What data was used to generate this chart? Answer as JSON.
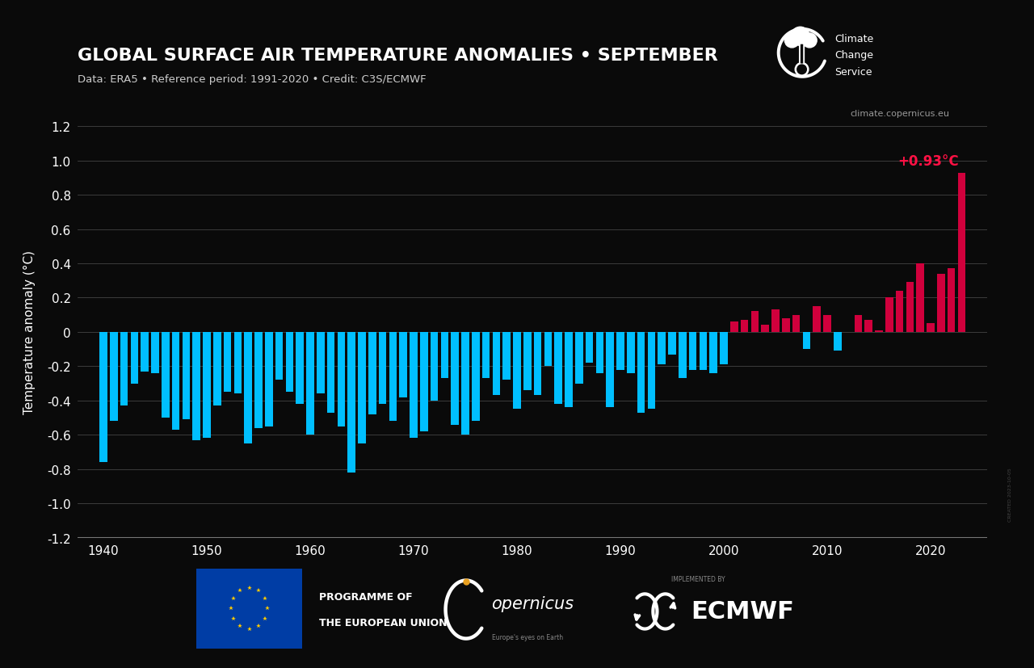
{
  "title": "GLOBAL SURFACE AIR TEMPERATURE ANOMALIES • SEPTEMBER",
  "subtitle": "Data: ERA5 • Reference period: 1991-2020 • Credit: C3S/ECMWF",
  "ylabel": "Temperature anomaly (°C)",
  "annotation": "+0.93°C",
  "watermark": "CREATED 2023-10-05",
  "bg_color": "#0a0a0a",
  "bar_color_negative": "#00BFFF",
  "bar_color_positive": "#D0003C",
  "grid_color": "#444444",
  "text_color": "#ffffff",
  "subtitle_color": "#cccccc",
  "annotation_color": "#FF1144",
  "website_color": "#999999",
  "ylim": [
    -1.2,
    1.2
  ],
  "yticks": [
    -1.2,
    -1.0,
    -0.8,
    -0.6,
    -0.4,
    -0.2,
    0.0,
    0.2,
    0.4,
    0.6,
    0.8,
    1.0,
    1.2
  ],
  "xticks": [
    1940,
    1950,
    1960,
    1970,
    1980,
    1990,
    2000,
    2010,
    2020
  ],
  "years": [
    1940,
    1941,
    1942,
    1943,
    1944,
    1945,
    1946,
    1947,
    1948,
    1949,
    1950,
    1951,
    1952,
    1953,
    1954,
    1955,
    1956,
    1957,
    1958,
    1959,
    1960,
    1961,
    1962,
    1963,
    1964,
    1965,
    1966,
    1967,
    1968,
    1969,
    1970,
    1971,
    1972,
    1973,
    1974,
    1975,
    1976,
    1977,
    1978,
    1979,
    1980,
    1981,
    1982,
    1983,
    1984,
    1985,
    1986,
    1987,
    1988,
    1989,
    1990,
    1991,
    1992,
    1993,
    1994,
    1995,
    1996,
    1997,
    1998,
    1999,
    2000,
    2001,
    2002,
    2003,
    2004,
    2005,
    2006,
    2007,
    2008,
    2009,
    2010,
    2011,
    2012,
    2013,
    2014,
    2015,
    2016,
    2017,
    2018,
    2019,
    2020,
    2021,
    2022,
    2023
  ],
  "values": [
    -0.76,
    -0.52,
    -0.43,
    -0.3,
    -0.23,
    -0.24,
    -0.5,
    -0.57,
    -0.51,
    -0.63,
    -0.62,
    -0.43,
    -0.35,
    -0.36,
    -0.65,
    -0.56,
    -0.55,
    -0.28,
    -0.35,
    -0.42,
    -0.6,
    -0.36,
    -0.47,
    -0.55,
    -0.82,
    -0.65,
    -0.48,
    -0.42,
    -0.52,
    -0.38,
    -0.62,
    -0.58,
    -0.4,
    -0.27,
    -0.54,
    -0.6,
    -0.52,
    -0.27,
    -0.37,
    -0.28,
    -0.45,
    -0.34,
    -0.37,
    -0.2,
    -0.42,
    -0.44,
    -0.3,
    -0.18,
    -0.24,
    -0.44,
    -0.22,
    -0.24,
    -0.47,
    -0.45,
    -0.19,
    -0.13,
    -0.27,
    -0.22,
    -0.22,
    -0.24,
    -0.19,
    0.06,
    0.07,
    0.12,
    0.04,
    0.13,
    0.08,
    0.1,
    -0.1,
    0.15,
    0.1,
    -0.11,
    0.0,
    0.1,
    0.07,
    0.01,
    0.2,
    0.24,
    0.29,
    0.4,
    0.05,
    0.34,
    0.37,
    0.93
  ]
}
